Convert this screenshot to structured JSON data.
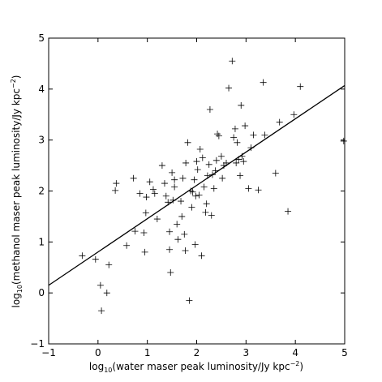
{
  "chart_data": {
    "type": "scatter",
    "title": "",
    "xlabel": {
      "pre": "log",
      "sub": "10",
      "mid": "(water maser peak luminosity/Jy kpc",
      "sup": "−2",
      "post": ")"
    },
    "ylabel": {
      "pre": "log",
      "sub": "10",
      "mid": "(methanol maser peak luminosity/Jy kpc",
      "sup": "−2",
      "post": ")"
    },
    "xlim": [
      -1,
      5
    ],
    "ylim": [
      -1,
      5
    ],
    "xticks": [
      -1,
      0,
      1,
      2,
      3,
      4,
      5
    ],
    "yticks": [
      -1,
      0,
      1,
      2,
      3,
      4,
      5
    ],
    "xtick_labels": [
      "−1",
      "0",
      "1",
      "2",
      "3",
      "4",
      "5"
    ],
    "ytick_labels": [
      "−1",
      "0",
      "1",
      "2",
      "3",
      "4",
      "5"
    ],
    "grid": false,
    "marker": "+",
    "colors": {
      "points": "#000000",
      "fit_line": "#000000",
      "axes": "#000000"
    },
    "fit_line": {
      "x": [
        -1,
        5
      ],
      "y": [
        0.15,
        4.07
      ]
    },
    "series": [
      {
        "points": [
          [
            -0.32,
            0.73
          ],
          [
            -0.05,
            0.66
          ],
          [
            0.05,
            0.15
          ],
          [
            0.07,
            -0.35
          ],
          [
            0.18,
            0.0
          ],
          [
            0.22,
            0.55
          ],
          [
            0.35,
            2.01
          ],
          [
            0.37,
            2.15
          ],
          [
            0.58,
            0.93
          ],
          [
            0.72,
            2.25
          ],
          [
            0.75,
            1.21
          ],
          [
            0.85,
            1.95
          ],
          [
            0.93,
            1.18
          ],
          [
            0.95,
            0.8
          ],
          [
            0.97,
            1.57
          ],
          [
            0.98,
            1.88
          ],
          [
            1.05,
            2.18
          ],
          [
            1.12,
            2.03
          ],
          [
            1.15,
            1.95
          ],
          [
            1.2,
            1.45
          ],
          [
            1.3,
            2.5
          ],
          [
            1.35,
            2.15
          ],
          [
            1.38,
            1.9
          ],
          [
            1.42,
            1.78
          ],
          [
            1.45,
            0.85
          ],
          [
            1.45,
            1.2
          ],
          [
            1.47,
            0.4
          ],
          [
            1.5,
            2.36
          ],
          [
            1.52,
            1.82
          ],
          [
            1.55,
            2.08
          ],
          [
            1.55,
            2.22
          ],
          [
            1.6,
            1.35
          ],
          [
            1.62,
            1.05
          ],
          [
            1.68,
            1.8
          ],
          [
            1.7,
            1.5
          ],
          [
            1.72,
            2.25
          ],
          [
            1.75,
            1.15
          ],
          [
            1.77,
            0.83
          ],
          [
            1.78,
            2.55
          ],
          [
            1.82,
            2.95
          ],
          [
            1.85,
            -0.15
          ],
          [
            1.88,
            2.0
          ],
          [
            1.9,
            1.68
          ],
          [
            1.92,
            1.98
          ],
          [
            1.95,
            2.22
          ],
          [
            1.97,
            0.95
          ],
          [
            1.98,
            1.9
          ],
          [
            2.0,
            2.58
          ],
          [
            2.02,
            2.42
          ],
          [
            2.05,
            1.92
          ],
          [
            2.07,
            2.82
          ],
          [
            2.1,
            0.73
          ],
          [
            2.12,
            2.65
          ],
          [
            2.15,
            2.08
          ],
          [
            2.18,
            1.58
          ],
          [
            2.2,
            1.75
          ],
          [
            2.22,
            2.3
          ],
          [
            2.25,
            2.52
          ],
          [
            2.27,
            3.6
          ],
          [
            2.3,
            1.52
          ],
          [
            2.32,
            2.32
          ],
          [
            2.35,
            2.05
          ],
          [
            2.38,
            2.4
          ],
          [
            2.4,
            2.6
          ],
          [
            2.42,
            3.12
          ],
          [
            2.45,
            3.08
          ],
          [
            2.5,
            2.68
          ],
          [
            2.52,
            2.25
          ],
          [
            2.55,
            2.5
          ],
          [
            2.6,
            2.55
          ],
          [
            2.65,
            4.02
          ],
          [
            2.72,
            4.55
          ],
          [
            2.75,
            3.05
          ],
          [
            2.78,
            3.22
          ],
          [
            2.8,
            2.55
          ],
          [
            2.82,
            2.95
          ],
          [
            2.85,
            2.62
          ],
          [
            2.88,
            2.3
          ],
          [
            2.9,
            3.68
          ],
          [
            2.92,
            2.68
          ],
          [
            2.95,
            2.58
          ],
          [
            2.98,
            3.28
          ],
          [
            3.05,
            2.05
          ],
          [
            3.1,
            2.85
          ],
          [
            3.15,
            3.1
          ],
          [
            3.25,
            2.02
          ],
          [
            3.35,
            4.13
          ],
          [
            3.38,
            3.1
          ],
          [
            3.6,
            2.35
          ],
          [
            3.68,
            3.35
          ],
          [
            3.85,
            1.6
          ],
          [
            3.97,
            3.5
          ],
          [
            4.1,
            4.05
          ],
          [
            4.98,
            2.98
          ]
        ]
      }
    ]
  }
}
